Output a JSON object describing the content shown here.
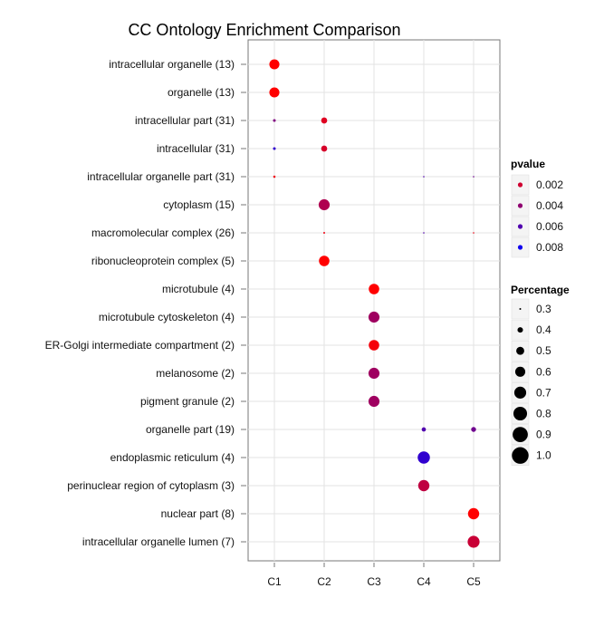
{
  "chart_data": {
    "type": "scatter",
    "title": "CC Ontology Enrichment Comparison",
    "xlabel": "",
    "ylabel": "",
    "x_categories": [
      "C1",
      "C2",
      "C3",
      "C4",
      "C5"
    ],
    "y_categories": [
      "intracellular organelle (13)",
      "organelle (13)",
      "intracellular part (31)",
      "intracellular (31)",
      "intracellular organelle part (31)",
      "cytoplasm (15)",
      "macromolecular complex (26)",
      "ribonucleoprotein complex (5)",
      "microtubule (4)",
      "microtubule cytoskeleton (4)",
      "ER-Golgi intermediate compartment (2)",
      "melanosome (2)",
      "pigment granule (2)",
      "organelle part (19)",
      "endoplasmic reticulum (4)",
      "perinuclear region of cytoplasm (3)",
      "nuclear part (8)",
      "intracellular organelle lumen (7)"
    ],
    "points": [
      {
        "x": "C1",
        "y": "intracellular organelle (13)",
        "percentage": 0.6,
        "pvalue": 0.0005
      },
      {
        "x": "C1",
        "y": "organelle (13)",
        "percentage": 0.6,
        "pvalue": 0.0005
      },
      {
        "x": "C1",
        "y": "intracellular part (31)",
        "percentage": 0.32,
        "pvalue": 0.0045
      },
      {
        "x": "C1",
        "y": "intracellular (31)",
        "percentage": 0.32,
        "pvalue": 0.007
      },
      {
        "x": "C1",
        "y": "intracellular organelle part (31)",
        "percentage": 0.31,
        "pvalue": 0.001
      },
      {
        "x": "C2",
        "y": "intracellular part (31)",
        "percentage": 0.42,
        "pvalue": 0.0015
      },
      {
        "x": "C2",
        "y": "intracellular (31)",
        "percentage": 0.42,
        "pvalue": 0.0018
      },
      {
        "x": "C2",
        "y": "cytoplasm (15)",
        "percentage": 0.65,
        "pvalue": 0.003
      },
      {
        "x": "C2",
        "y": "macromolecular complex (26)",
        "percentage": 0.3,
        "pvalue": 0.001
      },
      {
        "x": "C2",
        "y": "ribonucleoprotein complex (5)",
        "percentage": 0.62,
        "pvalue": 0.0005
      },
      {
        "x": "C3",
        "y": "microtubule (4)",
        "percentage": 0.62,
        "pvalue": 0.0005
      },
      {
        "x": "C3",
        "y": "microtubule cytoskeleton (4)",
        "percentage": 0.65,
        "pvalue": 0.0035
      },
      {
        "x": "C3",
        "y": "ER-Golgi intermediate compartment (2)",
        "percentage": 0.62,
        "pvalue": 0.0008
      },
      {
        "x": "C3",
        "y": "melanosome (2)",
        "percentage": 0.65,
        "pvalue": 0.0035
      },
      {
        "x": "C3",
        "y": "pigment granule (2)",
        "percentage": 0.65,
        "pvalue": 0.0035
      },
      {
        "x": "C4",
        "y": "intracellular organelle part (31)",
        "percentage": 0.27,
        "pvalue": 0.006
      },
      {
        "x": "C4",
        "y": "macromolecular complex (26)",
        "percentage": 0.27,
        "pvalue": 0.006
      },
      {
        "x": "C4",
        "y": "organelle part (19)",
        "percentage": 0.36,
        "pvalue": 0.006
      },
      {
        "x": "C4",
        "y": "endoplasmic reticulum (4)",
        "percentage": 0.72,
        "pvalue": 0.007
      },
      {
        "x": "C4",
        "y": "perinuclear region of cytoplasm (3)",
        "percentage": 0.66,
        "pvalue": 0.0025
      },
      {
        "x": "C5",
        "y": "intracellular organelle part (31)",
        "percentage": 0.28,
        "pvalue": 0.005
      },
      {
        "x": "C5",
        "y": "macromolecular complex (26)",
        "percentage": 0.28,
        "pvalue": 0.001
      },
      {
        "x": "C5",
        "y": "organelle part (19)",
        "percentage": 0.38,
        "pvalue": 0.005
      },
      {
        "x": "C5",
        "y": "nuclear part (8)",
        "percentage": 0.66,
        "pvalue": 0.0005
      },
      {
        "x": "C5",
        "y": "intracellular organelle lumen (7)",
        "percentage": 0.7,
        "pvalue": 0.0022
      }
    ],
    "grid": true,
    "color_scale": {
      "low_color": "#ff0000",
      "high_color": "#0000ff",
      "domain": [
        0.0005,
        0.0085
      ]
    },
    "legends": {
      "pvalue": {
        "title": "pvalue",
        "entries": [
          "0.002",
          "0.004",
          "0.006",
          "0.008"
        ],
        "values": [
          0.002,
          0.004,
          0.006,
          0.008
        ]
      },
      "percentage": {
        "title": "Percentage",
        "entries": [
          "0.3",
          "0.4",
          "0.5",
          "0.6",
          "0.7",
          "0.8",
          "0.9",
          "1.0"
        ],
        "values": [
          0.3,
          0.4,
          0.5,
          0.6,
          0.7,
          0.8,
          0.9,
          1.0
        ]
      }
    },
    "legend_position": "right"
  }
}
